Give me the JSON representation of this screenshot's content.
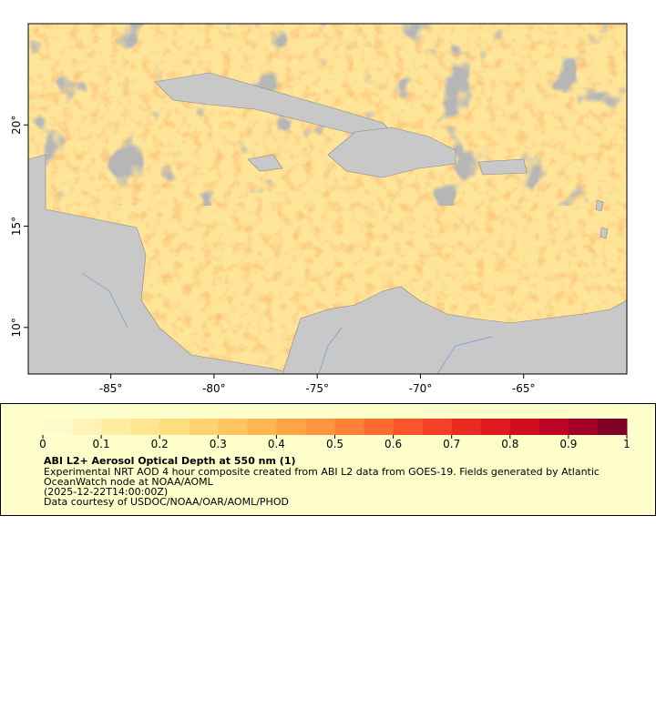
{
  "map": {
    "xlim": [
      -89,
      -60
    ],
    "ylim": [
      7.7,
      25
    ],
    "xticks": [
      {
        "value": -85,
        "label": "-85°"
      },
      {
        "value": -80,
        "label": "-80°"
      },
      {
        "value": -75,
        "label": "-75°"
      },
      {
        "value": -70,
        "label": "-70°"
      },
      {
        "value": -65,
        "label": "-65°"
      }
    ],
    "yticks": [
      {
        "value": 10,
        "label": "10°"
      },
      {
        "value": 15,
        "label": "15°"
      },
      {
        "value": 20,
        "label": "20°"
      }
    ]
  },
  "colorbar": {
    "range": [
      0,
      1
    ],
    "ticks": [
      0,
      0.1,
      0.2,
      0.3,
      0.4,
      0.5,
      0.6,
      0.7,
      0.8,
      0.9,
      1
    ],
    "colors": [
      "#fff9cc",
      "#fff3b8",
      "#ffeda3",
      "#fee690",
      "#fedd80",
      "#fed370",
      "#fec561",
      "#feb653",
      "#fda546",
      "#fd943f",
      "#fd8238",
      "#fc6c31",
      "#fa562c",
      "#f44027",
      "#ea2b22",
      "#de1a1f",
      "#cf0c22",
      "#bb0426",
      "#a20026",
      "#800026"
    ]
  },
  "legend": {
    "title": "ABI L2+ Aerosol Optical Depth at 550 nm (1)",
    "description": [
      "Experimental NRT AOD 4 hour composite created from ABI L2 data from GOES-19. Fields generated by Atlantic",
      "OceanWatch node at NOAA/AOML"
    ],
    "time": "(2025-12-22T14:00:00Z)",
    "credit": "Data courtesy of USDOC/NOAA/OAR/AOML/PHOD"
  }
}
